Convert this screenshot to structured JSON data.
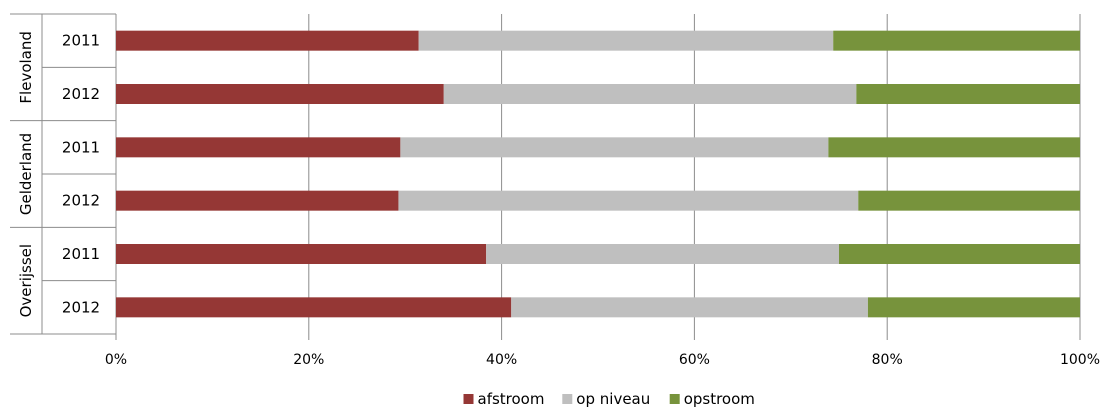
{
  "chart_data": {
    "type": "bar",
    "orientation": "horizontal",
    "stacked": "percent",
    "title": "",
    "xlabel": "",
    "ylabel": "",
    "xlim": [
      0,
      100
    ],
    "x_ticks": [
      "0%",
      "20%",
      "40%",
      "60%",
      "80%",
      "100%"
    ],
    "grid": true,
    "legend_position": "bottom",
    "groups": [
      "Flevoland",
      "Gelderland",
      "Overijssel"
    ],
    "categories": [
      {
        "group": "Flevoland",
        "label": "2011"
      },
      {
        "group": "Flevoland",
        "label": "2012"
      },
      {
        "group": "Gelderland",
        "label": "2011"
      },
      {
        "group": "Gelderland",
        "label": "2012"
      },
      {
        "group": "Overijssel",
        "label": "2011"
      },
      {
        "group": "Overijssel",
        "label": "2012"
      }
    ],
    "series": [
      {
        "name": "afstroom",
        "color": "#953735",
        "values": [
          31.4,
          34.0,
          29.5,
          29.3,
          38.4,
          41.0
        ]
      },
      {
        "name": "op niveau",
        "color": "#bfbfbf",
        "values": [
          43.0,
          42.8,
          44.4,
          47.7,
          36.6,
          37.0
        ]
      },
      {
        "name": "opstroom",
        "color": "#77933c",
        "values": [
          25.6,
          23.2,
          26.1,
          23.0,
          25.0,
          22.0
        ]
      }
    ]
  }
}
